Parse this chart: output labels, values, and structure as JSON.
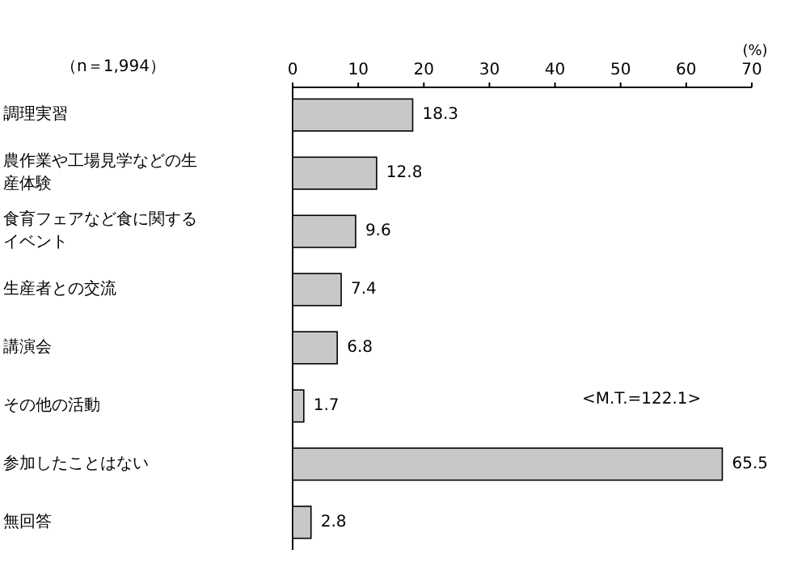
{
  "chart_data": {
    "type": "bar",
    "orientation": "horizontal",
    "subtitle": "（n＝1,994）",
    "xlabel": "(%)",
    "categories": [
      "調理実習",
      "農作業や工場見学などの生産体験",
      "食育フェアなど食に関するイベント",
      "生産者との交流",
      "講演会",
      "その他の活動",
      "参加したことはない",
      "無回答"
    ],
    "values": [
      18.3,
      12.8,
      9.6,
      7.4,
      6.8,
      1.7,
      65.5,
      2.8
    ],
    "color": "#c8c8c8",
    "xlim": [
      0,
      70
    ],
    "xticks": [
      0,
      10,
      20,
      30,
      40,
      50,
      60,
      70
    ],
    "data_labels": true,
    "grid": false,
    "annotations": [
      "<M.T.=122.1>"
    ]
  }
}
